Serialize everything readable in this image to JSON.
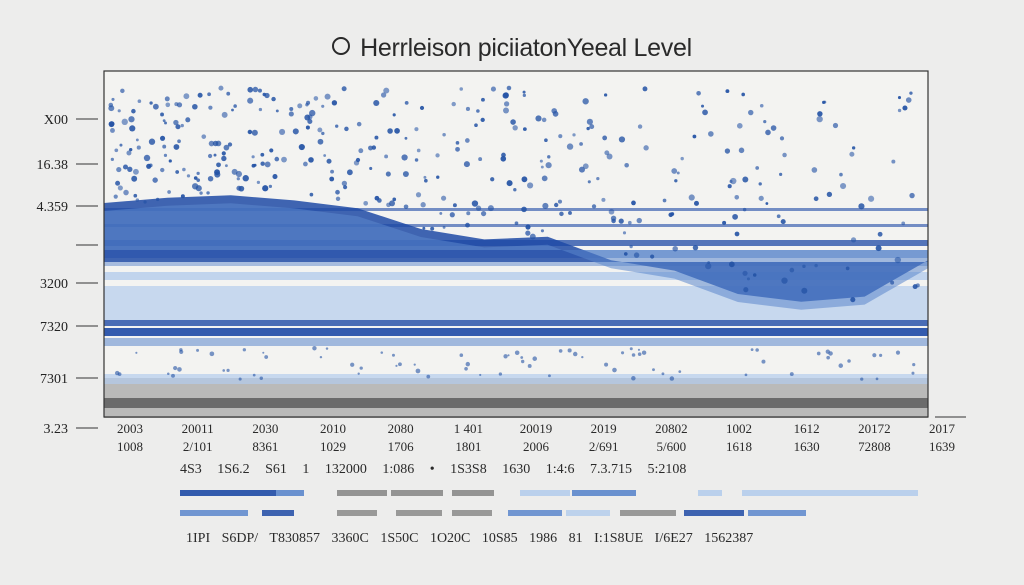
{
  "title": "Herrleison piciiatonYeeal Level",
  "title_icon": "circle-icon",
  "chart_data": {
    "type": "area",
    "title": "Herrleison piciiatonYeeal Level",
    "yticks": [
      "X00",
      "16.38",
      "4.359",
      "",
      "3200",
      "7320",
      "7301",
      "3.23"
    ],
    "xticks_top": [
      "2003",
      "20011",
      "2030",
      "2010",
      "2080",
      "1 401",
      "20019",
      "2019",
      "20802",
      "1002",
      "1612",
      "20172",
      "2017"
    ],
    "xticks_bottom": [
      "1008",
      "2/101",
      "8361",
      "1029",
      "1706",
      "1801",
      "2006",
      "2/691",
      "5/600",
      "1618",
      "1630",
      "72808",
      "1639"
    ],
    "series": [
      {
        "values": [
          70,
          72,
          73,
          71,
          68,
          60,
          56,
          57,
          48,
          44,
          35,
          32,
          34,
          48
        ]
      }
    ],
    "grid": true,
    "colors": {
      "dark_blue": "#1e4aa6",
      "mid_blue": "#5b86cc",
      "light_blue": "#b4ccec",
      "gray": "#8a8a8a",
      "dot": "#2453a5"
    }
  },
  "legend": {
    "label_row": "4S3 1S6.2 S61 1 132000 1:086 • 1S3S8 1630 1:4:6 7.3.715 5:2108",
    "footer_row": "1IPI S6DP/ T830857 3360C 1S50C 1O20C 10S85 1986 81 I:1S8UE I/6E27 1562387"
  }
}
